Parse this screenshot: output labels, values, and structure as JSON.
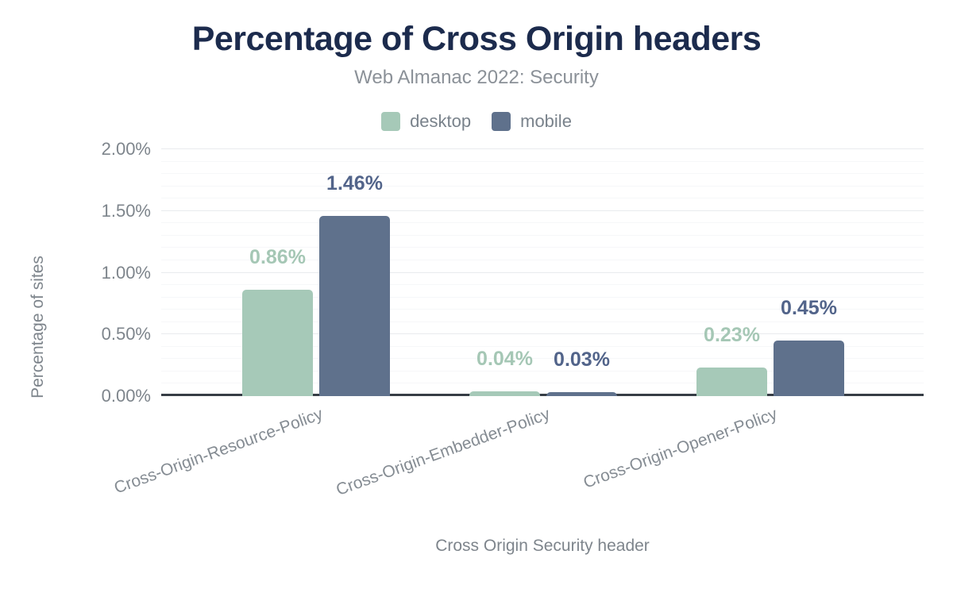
{
  "chart_data": {
    "type": "bar",
    "title": "Percentage of Cross Origin headers",
    "subtitle": "Web Almanac 2022: Security",
    "xlabel": "Cross Origin Security header",
    "ylabel": "Percentage of sites",
    "categories": [
      "Cross-Origin-Resource-Policy",
      "Cross-Origin-Embedder-Policy",
      "Cross-Origin-Opener-Policy"
    ],
    "series": [
      {
        "name": "desktop",
        "color": "#a6c9b8",
        "label_color": "#a5c7b5",
        "values": [
          0.86,
          0.04,
          0.23
        ],
        "labels": [
          "0.86%",
          "0.04%",
          "0.23%"
        ]
      },
      {
        "name": "mobile",
        "color": "#5f718c",
        "label_color": "#52648a",
        "values": [
          1.46,
          0.03,
          0.45
        ],
        "labels": [
          "1.46%",
          "0.03%",
          "0.45%"
        ]
      }
    ],
    "ylim": [
      0,
      2.0
    ],
    "yticks": [
      {
        "value": 0.0,
        "label": "0.00%"
      },
      {
        "value": 0.5,
        "label": "0.50%"
      },
      {
        "value": 1.0,
        "label": "1.00%"
      },
      {
        "value": 1.5,
        "label": "1.50%"
      },
      {
        "value": 2.0,
        "label": "2.00%"
      }
    ],
    "minor_tick_step": 0.1,
    "grid": true,
    "legend_position": "top",
    "colors": {
      "title": "#1c2b4d",
      "subtitle_text": "#8b9198",
      "axis_text": "#7e858c",
      "tick_text": "#858c93",
      "axis_line": "#363d45",
      "gridline_major": "#e9ebee",
      "gridline_minor": "#f6f7f9",
      "background": "#ffffff"
    }
  }
}
